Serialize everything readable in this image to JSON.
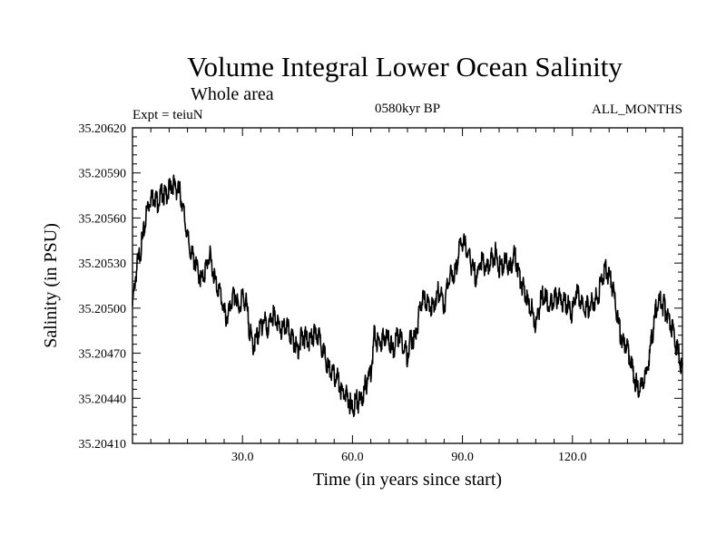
{
  "header": {
    "title": "Volume Integral Lower Ocean Salinity",
    "subtitle": "Whole area",
    "expt": "Expt = teiuN",
    "period": "0580kyr BP",
    "months": "ALL_MONTHS"
  },
  "chart_data": {
    "type": "line",
    "title": "Volume Integral Lower Ocean Salinity",
    "subtitle": "Whole area",
    "xlabel": "Time (in years since start)",
    "ylabel": "Salinity (in PSU)",
    "xlim": [
      0,
      150
    ],
    "ylim": [
      35.2041,
      35.2062
    ],
    "xticks": [
      30,
      60,
      90,
      120
    ],
    "xtick_labels": [
      "30.0",
      "60.0",
      "90.0",
      "120.0"
    ],
    "yticks": [
      35.2041,
      35.2044,
      35.2047,
      35.205,
      35.2053,
      35.2056,
      35.2059,
      35.2062
    ],
    "ytick_labels": [
      "35.20410",
      "35.20440",
      "35.20470",
      "35.20500",
      "35.20530",
      "35.20560",
      "35.20590",
      "35.20620"
    ],
    "grid": false,
    "series": [
      {
        "name": "Salinity",
        "color": "#000000",
        "x": [
          0,
          1,
          2,
          3,
          4,
          5,
          6,
          7,
          8,
          9,
          10,
          11,
          12,
          13,
          14,
          15,
          16,
          17,
          18,
          19,
          20,
          21,
          22,
          23,
          24,
          25,
          26,
          27,
          28,
          29,
          30,
          31,
          32,
          33,
          34,
          35,
          36,
          37,
          38,
          39,
          40,
          41,
          42,
          43,
          44,
          45,
          46,
          47,
          48,
          49,
          50,
          51,
          52,
          53,
          54,
          55,
          56,
          57,
          58,
          59,
          60,
          61,
          62,
          63,
          64,
          65,
          66,
          67,
          68,
          69,
          70,
          71,
          72,
          73,
          74,
          75,
          76,
          77,
          78,
          79,
          80,
          81,
          82,
          83,
          84,
          85,
          86,
          87,
          88,
          89,
          90,
          91,
          92,
          93,
          94,
          95,
          96,
          97,
          98,
          99,
          100,
          101,
          102,
          103,
          104,
          105,
          106,
          107,
          108,
          109,
          110,
          111,
          112,
          113,
          114,
          115,
          116,
          117,
          118,
          119,
          120,
          121,
          122,
          123,
          124,
          125,
          126,
          127,
          128,
          129,
          130,
          131,
          132,
          133,
          134,
          135,
          136,
          137,
          138,
          139,
          140,
          141,
          142,
          143,
          144,
          145,
          146,
          147,
          148,
          149,
          150
        ],
        "y": [
          35.20505,
          35.20528,
          35.2054,
          35.20552,
          35.2057,
          35.20577,
          35.20578,
          35.20574,
          35.20581,
          35.20578,
          35.20582,
          35.20586,
          35.20583,
          35.2058,
          35.20567,
          35.2055,
          35.2054,
          35.20535,
          35.20526,
          35.20522,
          35.2053,
          35.20539,
          35.20528,
          35.20518,
          35.20514,
          35.205,
          35.20496,
          35.20508,
          35.20512,
          35.20502,
          35.20512,
          35.20506,
          35.20488,
          35.20478,
          35.20484,
          35.20492,
          35.20496,
          35.20488,
          35.205,
          35.20496,
          35.2049,
          35.20488,
          35.20492,
          35.20486,
          35.20482,
          35.20476,
          35.20484,
          35.20484,
          35.20482,
          35.20484,
          35.20486,
          35.20484,
          35.20476,
          35.20466,
          35.20462,
          35.20458,
          35.20456,
          35.20448,
          35.20446,
          35.20442,
          35.20436,
          35.20442,
          35.20441,
          35.20446,
          35.20456,
          35.20462,
          35.20486,
          35.2048,
          35.20482,
          35.20485,
          35.20482,
          35.20474,
          35.20484,
          35.20486,
          35.20478,
          35.20472,
          35.20484,
          35.20482,
          35.20496,
          35.2051,
          35.20508,
          35.20506,
          35.20504,
          35.20512,
          35.20516,
          35.20504,
          35.2052,
          35.20526,
          35.20525,
          35.20542,
          35.20548,
          35.20544,
          35.20536,
          35.20528,
          35.20524,
          35.20536,
          35.20532,
          35.2053,
          35.20536,
          35.2054,
          35.2053,
          35.20532,
          35.20535,
          35.20528,
          35.2054,
          35.20532,
          35.2052,
          35.20515,
          35.20505,
          35.20502,
          35.20492,
          35.20505,
          35.20512,
          35.20508,
          35.20505,
          35.2051,
          35.2051,
          35.20508,
          35.20507,
          35.20505,
          35.205,
          35.20515,
          35.2051,
          35.20502,
          35.20505,
          35.20505,
          35.20508,
          35.20512,
          35.20524,
          35.2053,
          35.20525,
          35.20518,
          35.205,
          35.20488,
          35.20478,
          35.20478,
          35.20468,
          35.20456,
          35.2045,
          35.20452,
          35.20458,
          35.20472,
          35.20488,
          35.20506,
          35.20508,
          35.20505,
          35.20498,
          35.20492,
          35.20482,
          35.20472,
          35.20462
        ]
      }
    ]
  }
}
